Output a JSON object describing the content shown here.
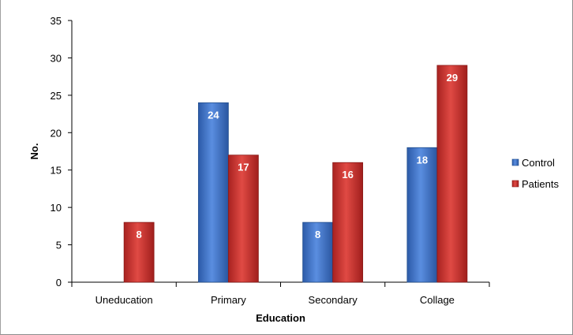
{
  "chart_data": {
    "type": "bar",
    "categories": [
      "Uneducation",
      "Primary",
      "Secondary",
      "Collage"
    ],
    "series": [
      {
        "name": "Control",
        "values": [
          0,
          24,
          8,
          18
        ],
        "labels": [
          "",
          "24",
          "8",
          "18"
        ],
        "color": "#3f6fc6"
      },
      {
        "name": "Patients",
        "values": [
          8,
          17,
          16,
          29
        ],
        "labels": [
          "8",
          "17",
          "16",
          "29"
        ],
        "color": "#c8302e"
      }
    ],
    "xlabel": "Education",
    "ylabel": "No.",
    "ylim": [
      0,
      35
    ],
    "yticks": [
      "0",
      "5",
      "10",
      "15",
      "20",
      "25",
      "30",
      "35"
    ],
    "grid": false,
    "legend": "right"
  }
}
